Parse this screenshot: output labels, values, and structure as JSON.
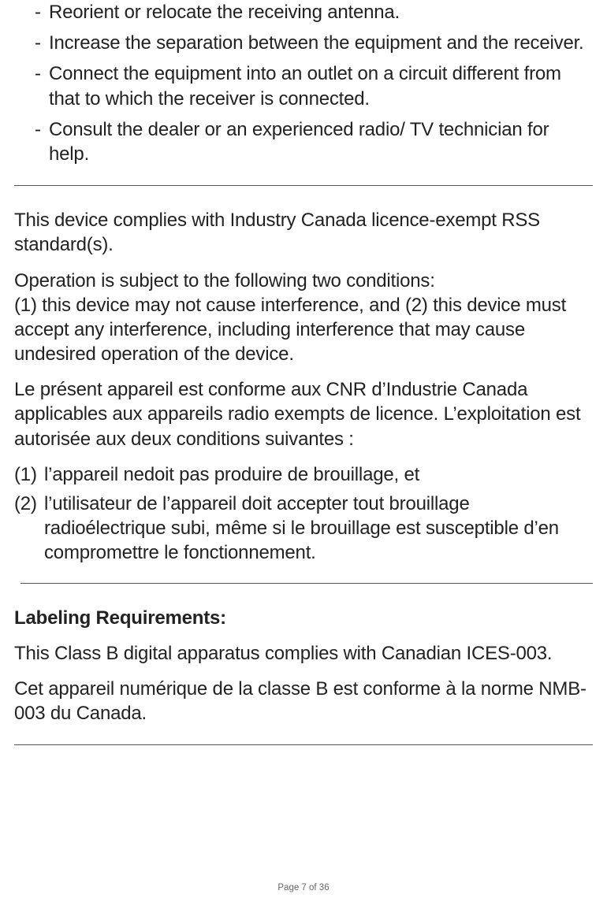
{
  "colors": {
    "text": "#222222",
    "rule": "#555555",
    "footer": "#666666",
    "background": "#ffffff"
  },
  "typography": {
    "body_fontsize_pt": 18,
    "heading_fontsize_pt": 18,
    "footer_fontsize_pt": 8.5,
    "font_family": "Myriad Pro / Helvetica-like sans-serif",
    "body_weight": 300,
    "heading_weight": 700,
    "line_height": 1.3
  },
  "dash_list": {
    "items": [
      "Reorient or relocate the receiving antenna.",
      "Increase the separation between the equipment and the receiver.",
      "Connect the equipment into an outlet on a circuit different from that to which the receiver is connected.",
      "Consult the dealer or an experienced radio/ TV technician for help."
    ]
  },
  "section_ic": {
    "p1": "This device complies with Industry Canada licence-exempt RSS standard(s).",
    "p2_line1": "Operation is subject to the following two conditions:",
    "p2_line2": "(1) this device may not cause interference, and (2) this device must accept any interference, including interference that may cause undesired operation of the device.",
    "p3": "Le présent appareil est conforme aux CNR d’Industrie Canada applicables aux appareils radio exempts de licence. L’exploitation est autorisée aux deux conditions suivantes :",
    "numbered": [
      {
        "marker": "(1)",
        "text": "l’appareil nedoit pas produire de brouillage, et"
      },
      {
        "marker": "(2)",
        "text": "l’utilisateur de l’appareil doit accepter tout brouillage radioélectrique subi, même si le brouillage est susceptible d’en compromettre le fonctionnement."
      }
    ]
  },
  "section_labeling": {
    "heading": "Labeling Requirements:",
    "p1": "This Class B digital apparatus complies with Canadian ICES-003.",
    "p2": "Cet appareil numérique de la classe B est conforme à la norme NMB-003 du Canada."
  },
  "footer": {
    "text": "Page 7 of 36"
  }
}
